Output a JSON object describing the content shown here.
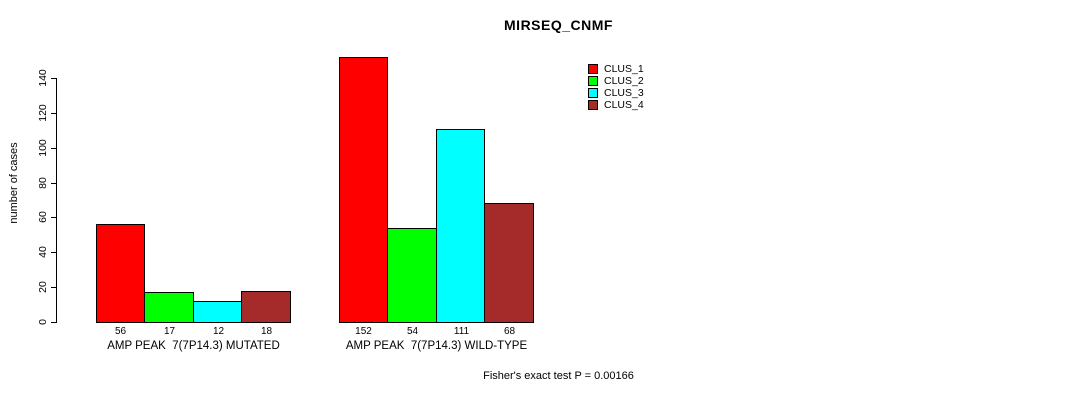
{
  "header": {
    "title": "MIRSEQ_CNMF"
  },
  "chart_data": {
    "type": "bar",
    "title": "MIRSEQ_CNMF",
    "ylabel": "number of cases",
    "xlabel": "",
    "categories": [
      "AMP PEAK  7(7P14.3) MUTATED",
      "AMP PEAK  7(7P14.3) WILD-TYPE"
    ],
    "series": [
      {
        "name": "CLUS_1",
        "color": "#ff0000",
        "values": [
          56,
          152
        ]
      },
      {
        "name": "CLUS_2",
        "color": "#00ff00",
        "values": [
          17,
          54
        ]
      },
      {
        "name": "CLUS_3",
        "color": "#00ffff",
        "values": [
          12,
          111
        ]
      },
      {
        "name": "CLUS_4",
        "color": "#a52a2a",
        "values": [
          18,
          68
        ]
      }
    ],
    "yticks": [
      0,
      20,
      40,
      60,
      80,
      100,
      120,
      140
    ],
    "ylim": [
      0,
      155
    ],
    "grid": false,
    "legend_position": "top-right-outside",
    "bar_value_labels_shown": true,
    "annotation": "Fisher's exact test P = 0.00166"
  },
  "legend": {
    "items": [
      {
        "label": "CLUS_1",
        "color": "#ff0000"
      },
      {
        "label": "CLUS_2",
        "color": "#00ff00"
      },
      {
        "label": "CLUS_3",
        "color": "#00ffff"
      },
      {
        "label": "CLUS_4",
        "color": "#a52a2a"
      }
    ]
  },
  "footer": {
    "text": "Fisher's exact test P = 0.00166"
  }
}
